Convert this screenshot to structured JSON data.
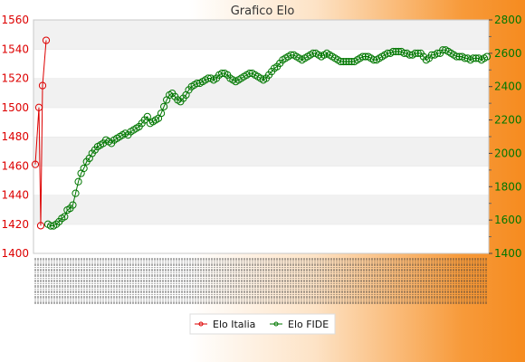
{
  "chart_data": {
    "type": "line",
    "title": "Grafico Elo",
    "xlabel": "",
    "ylabel": "",
    "y_left": {
      "ylim": [
        1400,
        1560
      ],
      "ticks": [
        1400,
        1420,
        1440,
        1460,
        1480,
        1500,
        1520,
        1540,
        1560
      ],
      "color": "#dd0000"
    },
    "y_right": {
      "ylim": [
        1400,
        2800
      ],
      "ticks": [
        1400,
        1600,
        1800,
        2000,
        2200,
        2400,
        2600,
        2800
      ],
      "color": "#007700"
    },
    "grid": true,
    "legend_position": "bottom-center",
    "series": [
      {
        "name": "Elo Italia",
        "axis": "left",
        "color": "#dd0000",
        "marker": "open-circle",
        "values": [
          1461,
          1500,
          1419,
          1515,
          1546
        ]
      },
      {
        "name": "Elo FIDE",
        "axis": "right",
        "color": "#007700",
        "marker": "open-circle",
        "values": [
          1575,
          1565,
          1565,
          1575,
          1590,
          1610,
          1620,
          1660,
          1670,
          1690,
          1760,
          1830,
          1880,
          1910,
          1950,
          1970,
          2000,
          2020,
          2040,
          2050,
          2060,
          2080,
          2070,
          2060,
          2080,
          2090,
          2100,
          2110,
          2120,
          2110,
          2130,
          2140,
          2150,
          2160,
          2180,
          2200,
          2220,
          2180,
          2190,
          2200,
          2210,
          2240,
          2280,
          2320,
          2350,
          2360,
          2340,
          2320,
          2310,
          2330,
          2350,
          2380,
          2400,
          2410,
          2420,
          2420,
          2430,
          2440,
          2450,
          2450,
          2440,
          2450,
          2470,
          2480,
          2480,
          2470,
          2450,
          2440,
          2430,
          2440,
          2450,
          2460,
          2470,
          2480,
          2480,
          2470,
          2460,
          2450,
          2440,
          2450,
          2470,
          2490,
          2510,
          2520,
          2540,
          2560,
          2570,
          2580,
          2590,
          2590,
          2580,
          2570,
          2560,
          2570,
          2580,
          2590,
          2600,
          2600,
          2590,
          2580,
          2590,
          2600,
          2590,
          2580,
          2570,
          2560,
          2550,
          2550,
          2550,
          2550,
          2550,
          2550,
          2560,
          2570,
          2580,
          2580,
          2580,
          2570,
          2560,
          2560,
          2570,
          2580,
          2590,
          2600,
          2600,
          2610,
          2610,
          2610,
          2610,
          2600,
          2600,
          2590,
          2590,
          2600,
          2600,
          2600,
          2580,
          2560,
          2570,
          2590,
          2590,
          2600,
          2600,
          2620,
          2620,
          2610,
          2600,
          2590,
          2580,
          2580,
          2580,
          2570,
          2570,
          2560,
          2570,
          2570,
          2570,
          2560,
          2570,
          2580
        ]
      }
    ]
  }
}
